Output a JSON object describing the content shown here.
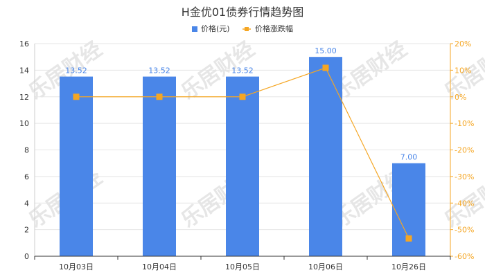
{
  "chart_data": {
    "type": "bar",
    "title": "H金优01债券行情趋势图",
    "categories": [
      "10月03日",
      "10月04日",
      "10月05日",
      "10月06日",
      "10月26日"
    ],
    "series": [
      {
        "name": "价格(元)",
        "type": "bar",
        "axis": "left",
        "values": [
          13.52,
          13.52,
          13.52,
          15.0,
          7.0
        ],
        "color": "#4a86e8"
      },
      {
        "name": "价格涨跌幅",
        "type": "line",
        "axis": "right",
        "values": [
          0,
          0,
          0,
          10.9,
          -53.3
        ],
        "color": "#f5a623"
      }
    ],
    "data_labels": [
      "13.52",
      "13.52",
      "13.52",
      "15.00",
      "7.00"
    ],
    "y_left": {
      "min": 0,
      "max": 16,
      "ticks": [
        "0",
        "2",
        "4",
        "6",
        "8",
        "10",
        "12",
        "14",
        "16"
      ]
    },
    "y_right": {
      "min": -60,
      "max": 20,
      "ticks": [
        "-60%",
        "-50%",
        "-40%",
        "-30%",
        "-20%",
        "-10%",
        "0%",
        "10%",
        "20%"
      ]
    },
    "grid": true,
    "legend": "top-center"
  },
  "watermark": "乐居财经"
}
